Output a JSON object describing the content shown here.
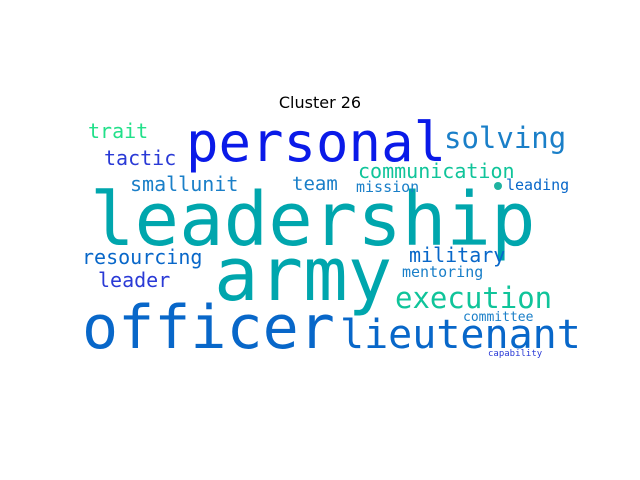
{
  "title": "Cluster 26",
  "words": {
    "leadership": "leadership",
    "army": "army",
    "officer": "officer",
    "personal": "personal",
    "lieutenant": "lieutenant",
    "execution": "execution",
    "solving": "solving",
    "communication": "communication",
    "military": "military",
    "resourcing": "resourcing",
    "leader": "leader",
    "trait": "trait",
    "tactic": "tactic",
    "smallunit": "smallunit",
    "team": "team",
    "mission": "mission",
    "leading": "leading",
    "mentoring": "mentoring",
    "committee": "committee",
    "capability": "capability"
  },
  "colors": {
    "teal": "#00a6ad",
    "blue": "#0a1ae8",
    "mid_blue": "#0867c9",
    "sea_green": "#10c49a",
    "light_green": "#22e08a",
    "steel_blue": "#1a7fc8",
    "indigo": "#2a3ad6",
    "dot": "#1fb3a0"
  }
}
